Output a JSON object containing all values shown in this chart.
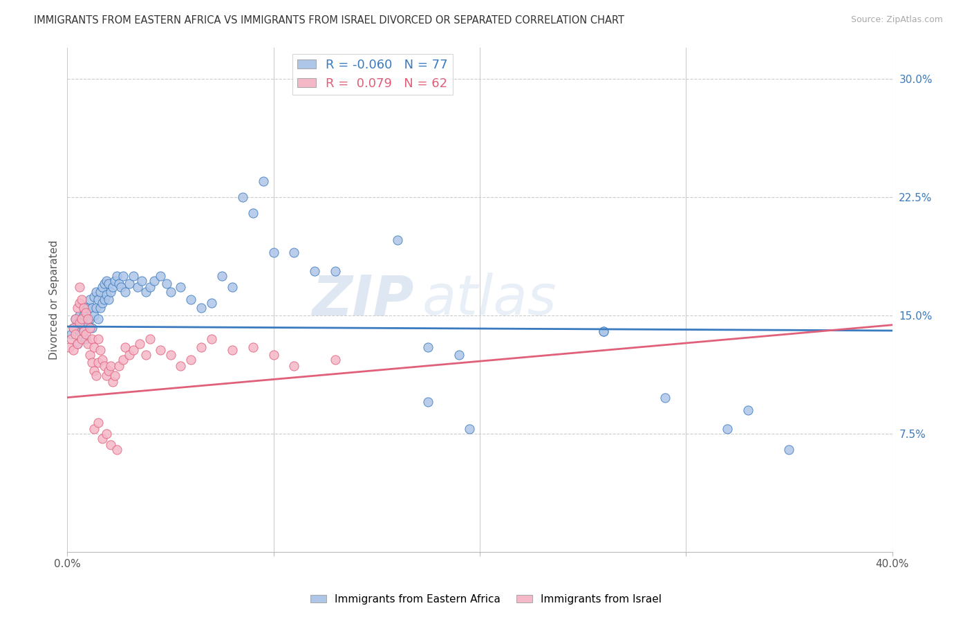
{
  "title": "IMMIGRANTS FROM EASTERN AFRICA VS IMMIGRANTS FROM ISRAEL DIVORCED OR SEPARATED CORRELATION CHART",
  "source": "Source: ZipAtlas.com",
  "ylabel": "Divorced or Separated",
  "ytick_labels": [
    "7.5%",
    "15.0%",
    "22.5%",
    "30.0%"
  ],
  "ytick_values": [
    0.075,
    0.15,
    0.225,
    0.3
  ],
  "xlim": [
    0.0,
    0.4
  ],
  "ylim": [
    0.0,
    0.32
  ],
  "legend_blue_r": "-0.060",
  "legend_blue_n": "77",
  "legend_pink_r": "0.079",
  "legend_pink_n": "62",
  "blue_color": "#aec6e8",
  "pink_color": "#f5b8c8",
  "blue_line_color": "#3a7abf",
  "pink_line_color": "#e0607a",
  "watermark_zip": "ZIP",
  "watermark_atlas": "atlas",
  "blue_intercept": 0.143,
  "blue_slope": -0.0065,
  "pink_intercept": 0.098,
  "pink_slope": 0.115,
  "blue_points_x": [
    0.002,
    0.003,
    0.004,
    0.005,
    0.005,
    0.006,
    0.006,
    0.007,
    0.007,
    0.008,
    0.008,
    0.009,
    0.009,
    0.01,
    0.01,
    0.011,
    0.011,
    0.012,
    0.012,
    0.013,
    0.013,
    0.014,
    0.014,
    0.015,
    0.015,
    0.016,
    0.016,
    0.017,
    0.017,
    0.018,
    0.018,
    0.019,
    0.019,
    0.02,
    0.02,
    0.021,
    0.022,
    0.023,
    0.024,
    0.025,
    0.026,
    0.027,
    0.028,
    0.03,
    0.032,
    0.034,
    0.036,
    0.038,
    0.04,
    0.042,
    0.045,
    0.048,
    0.05,
    0.055,
    0.06,
    0.065,
    0.07,
    0.075,
    0.08,
    0.085,
    0.09,
    0.095,
    0.1,
    0.11,
    0.12,
    0.13,
    0.16,
    0.175,
    0.19,
    0.26,
    0.29,
    0.33,
    0.175,
    0.195,
    0.32,
    0.35,
    0.26
  ],
  "blue_points_y": [
    0.138,
    0.142,
    0.148,
    0.145,
    0.132,
    0.14,
    0.15,
    0.138,
    0.145,
    0.142,
    0.15,
    0.155,
    0.135,
    0.145,
    0.155,
    0.148,
    0.16,
    0.142,
    0.155,
    0.15,
    0.162,
    0.155,
    0.165,
    0.148,
    0.16,
    0.155,
    0.165,
    0.158,
    0.168,
    0.16,
    0.17,
    0.163,
    0.172,
    0.16,
    0.17,
    0.165,
    0.168,
    0.172,
    0.175,
    0.17,
    0.168,
    0.175,
    0.165,
    0.17,
    0.175,
    0.168,
    0.172,
    0.165,
    0.168,
    0.172,
    0.175,
    0.17,
    0.165,
    0.168,
    0.16,
    0.155,
    0.158,
    0.175,
    0.168,
    0.225,
    0.215,
    0.235,
    0.19,
    0.19,
    0.178,
    0.178,
    0.198,
    0.13,
    0.125,
    0.14,
    0.098,
    0.09,
    0.095,
    0.078,
    0.078,
    0.065,
    0.14
  ],
  "pink_points_x": [
    0.001,
    0.002,
    0.003,
    0.003,
    0.004,
    0.004,
    0.005,
    0.005,
    0.006,
    0.006,
    0.006,
    0.007,
    0.007,
    0.007,
    0.008,
    0.008,
    0.009,
    0.009,
    0.01,
    0.01,
    0.011,
    0.011,
    0.012,
    0.012,
    0.013,
    0.013,
    0.014,
    0.015,
    0.015,
    0.016,
    0.017,
    0.018,
    0.019,
    0.02,
    0.021,
    0.022,
    0.023,
    0.025,
    0.027,
    0.028,
    0.03,
    0.032,
    0.035,
    0.038,
    0.04,
    0.045,
    0.05,
    0.055,
    0.06,
    0.065,
    0.07,
    0.08,
    0.09,
    0.1,
    0.11,
    0.13,
    0.013,
    0.015,
    0.017,
    0.019,
    0.021,
    0.024
  ],
  "pink_points_y": [
    0.13,
    0.135,
    0.128,
    0.142,
    0.138,
    0.148,
    0.132,
    0.155,
    0.145,
    0.158,
    0.168,
    0.135,
    0.148,
    0.16,
    0.14,
    0.155,
    0.138,
    0.152,
    0.132,
    0.148,
    0.125,
    0.142,
    0.12,
    0.135,
    0.115,
    0.13,
    0.112,
    0.12,
    0.135,
    0.128,
    0.122,
    0.118,
    0.112,
    0.115,
    0.118,
    0.108,
    0.112,
    0.118,
    0.122,
    0.13,
    0.125,
    0.128,
    0.132,
    0.125,
    0.135,
    0.128,
    0.125,
    0.118,
    0.122,
    0.13,
    0.135,
    0.128,
    0.13,
    0.125,
    0.118,
    0.122,
    0.078,
    0.082,
    0.072,
    0.075,
    0.068,
    0.065
  ]
}
